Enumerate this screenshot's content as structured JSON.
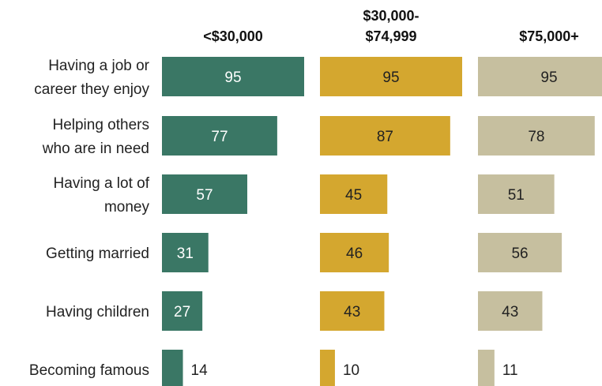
{
  "chart_data": {
    "type": "bar",
    "orientation": "horizontal",
    "categories": [
      [
        "Having a job or",
        "career they enjoy"
      ],
      [
        "Helping others",
        "who are in need"
      ],
      [
        "Having a lot of",
        "money"
      ],
      [
        "Getting married"
      ],
      [
        "Having children"
      ],
      [
        "Becoming famous"
      ]
    ],
    "series": [
      {
        "name": [
          "<$30,000"
        ],
        "color": "#3a7765",
        "values": [
          95,
          77,
          57,
          31,
          27,
          14
        ]
      },
      {
        "name": [
          "$30,000-",
          "$74,999"
        ],
        "color": "#d4a72f",
        "values": [
          95,
          87,
          45,
          46,
          43,
          10
        ]
      },
      {
        "name": [
          "$75,000+"
        ],
        "color": "#c6bf9f",
        "values": [
          95,
          78,
          51,
          56,
          43,
          11
        ]
      }
    ],
    "xlim": [
      0,
      95
    ],
    "grid": false,
    "legend": "none"
  }
}
